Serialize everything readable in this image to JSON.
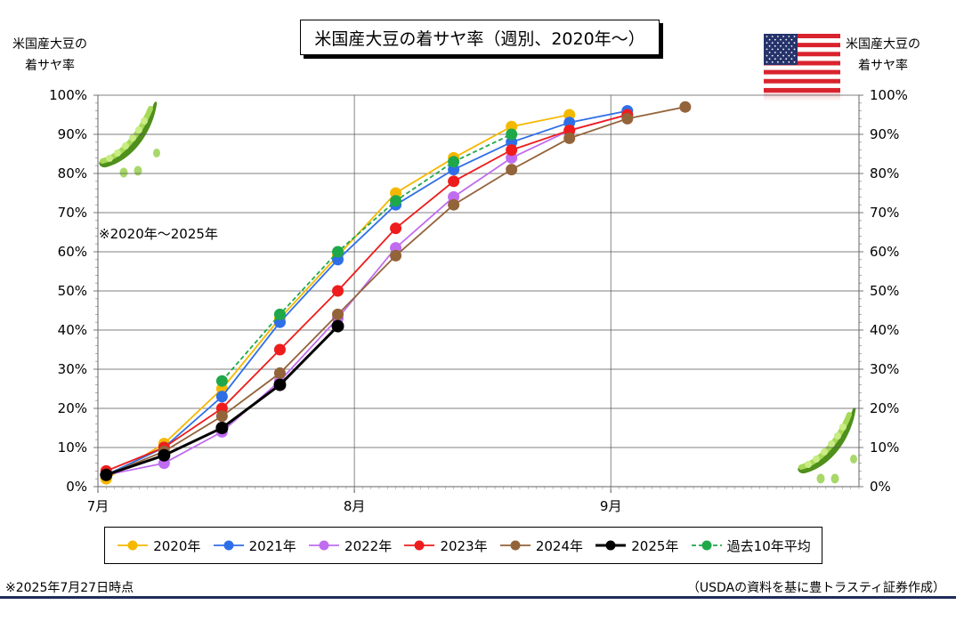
{
  "title": "米国産大豆の着サヤ率（週別、2020年～）",
  "axis_left_title": [
    "米国産大豆の",
    "着サヤ率"
  ],
  "axis_right_title": [
    "米国産大豆の",
    "着サヤ率"
  ],
  "note_range": "※2020年～2025年",
  "footer_left": "※2025年7月27日時点",
  "footer_right": "（USDAの資料を基に豊トラスティ証券作成）",
  "icons": [
    "us-flag-icon",
    "soybean-pod-icon"
  ],
  "chart_data": {
    "type": "line",
    "x_unit": "day of year (July 1 = 0)",
    "xlim": [
      0,
      92
    ],
    "x_ticks": [
      {
        "x": 0,
        "label": "7月"
      },
      {
        "x": 31,
        "label": "8月"
      },
      {
        "x": 62,
        "label": "9月"
      }
    ],
    "ylim": [
      0,
      100
    ],
    "y_ticks": [
      "0%",
      "10%",
      "20%",
      "30%",
      "40%",
      "50%",
      "60%",
      "70%",
      "80%",
      "90%",
      "100%"
    ],
    "grid": true,
    "legend_position": "bottom",
    "series": [
      {
        "name": "2020年",
        "color": "#f5b800",
        "dashed": false,
        "bold": false,
        "points": [
          [
            1,
            2
          ],
          [
            8,
            11
          ],
          [
            15,
            25
          ],
          [
            22,
            43
          ],
          [
            29,
            59
          ],
          [
            36,
            75
          ],
          [
            43,
            84
          ],
          [
            50,
            92
          ],
          [
            57,
            95
          ]
        ]
      },
      {
        "name": "2021年",
        "color": "#2e6fe8",
        "dashed": false,
        "bold": false,
        "points": [
          [
            1,
            3
          ],
          [
            8,
            10
          ],
          [
            15,
            23
          ],
          [
            22,
            42
          ],
          [
            29,
            58
          ],
          [
            36,
            72
          ],
          [
            43,
            81
          ],
          [
            50,
            88
          ],
          [
            57,
            93
          ],
          [
            64,
            96
          ]
        ]
      },
      {
        "name": "2022年",
        "color": "#c06cf0",
        "dashed": false,
        "bold": false,
        "points": [
          [
            1,
            3
          ],
          [
            8,
            6
          ],
          [
            15,
            14
          ],
          [
            22,
            27
          ],
          [
            29,
            43
          ],
          [
            36,
            61
          ],
          [
            43,
            74
          ],
          [
            50,
            84
          ],
          [
            57,
            91
          ],
          [
            64,
            95
          ]
        ]
      },
      {
        "name": "2023年",
        "color": "#ee1c1c",
        "dashed": false,
        "bold": false,
        "points": [
          [
            1,
            4
          ],
          [
            8,
            10
          ],
          [
            15,
            20
          ],
          [
            22,
            35
          ],
          [
            29,
            50
          ],
          [
            36,
            66
          ],
          [
            43,
            78
          ],
          [
            50,
            86
          ],
          [
            57,
            91
          ],
          [
            64,
            95
          ]
        ]
      },
      {
        "name": "2024年",
        "color": "#93633a",
        "dashed": false,
        "bold": false,
        "points": [
          [
            1,
            3
          ],
          [
            8,
            9
          ],
          [
            15,
            18
          ],
          [
            22,
            29
          ],
          [
            29,
            44
          ],
          [
            36,
            59
          ],
          [
            43,
            72
          ],
          [
            50,
            81
          ],
          [
            57,
            89
          ],
          [
            64,
            94
          ],
          [
            71,
            97
          ]
        ]
      },
      {
        "name": "2025年",
        "color": "#000000",
        "dashed": false,
        "bold": true,
        "points": [
          [
            1,
            3
          ],
          [
            8,
            8
          ],
          [
            15,
            15
          ],
          [
            22,
            26
          ],
          [
            29,
            41
          ]
        ]
      },
      {
        "name": "過去10年平均",
        "color": "#1ea84a",
        "dashed": true,
        "bold": false,
        "points": [
          [
            15,
            27
          ],
          [
            22,
            44
          ],
          [
            29,
            60
          ],
          [
            36,
            73
          ],
          [
            43,
            83
          ],
          [
            50,
            90
          ]
        ]
      }
    ]
  }
}
